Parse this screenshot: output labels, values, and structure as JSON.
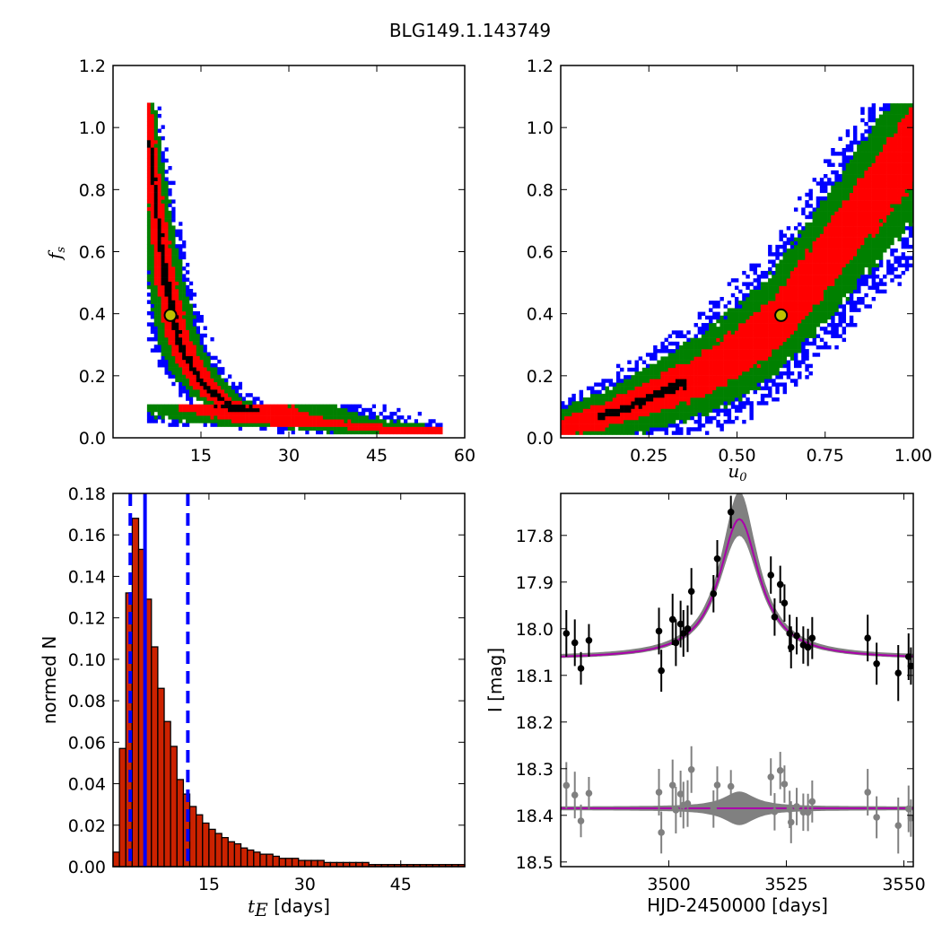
{
  "figure": {
    "title": "BLG149.1.143749"
  },
  "chart_data": [
    {
      "type": "heatmap",
      "xlabel": "",
      "ylabel": "f",
      "ylabel_sub": "s",
      "xlim": [
        0,
        60
      ],
      "ylim": [
        0.0,
        1.2
      ],
      "xticks": [
        "15",
        "30",
        "45",
        "60"
      ],
      "yticks": [
        "0.0",
        "0.2",
        "0.4",
        "0.6",
        "0.8",
        "1.0",
        "1.2"
      ],
      "best_fit": {
        "x": 9.8,
        "y": 0.395
      },
      "levels": [
        "black",
        "red",
        "green",
        "blue"
      ],
      "colors": {
        "black": "#000000",
        "red": "#ff0000",
        "green": "#008000",
        "blue": "#0000ff",
        "marker_fill": "#bfbf00"
      },
      "ridge": [
        [
          5.5,
          1.07
        ],
        [
          6.2,
          0.9
        ],
        [
          7,
          0.75
        ],
        [
          8,
          0.6
        ],
        [
          9,
          0.47
        ],
        [
          10,
          0.38
        ],
        [
          11,
          0.31
        ],
        [
          12,
          0.26
        ],
        [
          14,
          0.2
        ],
        [
          16,
          0.15
        ],
        [
          18,
          0.12
        ],
        [
          21,
          0.09
        ],
        [
          25,
          0.065
        ],
        [
          30,
          0.045
        ],
        [
          40,
          0.03
        ],
        [
          55,
          0.02
        ]
      ]
    },
    {
      "type": "heatmap",
      "xlabel": "u",
      "xlabel_sub": "0",
      "ylabel": "",
      "xlim": [
        0.0,
        1.0
      ],
      "ylim": [
        0.0,
        1.2
      ],
      "xticks": [
        "0.25",
        "0.50",
        "0.75",
        "1.00"
      ],
      "yticks": [
        "0.0",
        "0.2",
        "0.4",
        "0.6",
        "0.8",
        "1.0",
        "1.2"
      ],
      "best_fit": {
        "x": 0.625,
        "y": 0.395
      },
      "colors": {
        "black": "#000000",
        "red": "#ff0000",
        "green": "#008000",
        "blue": "#0000ff",
        "marker_fill": "#bfbf00"
      },
      "ridge": [
        [
          0.0,
          0.03
        ],
        [
          0.1,
          0.06
        ],
        [
          0.2,
          0.1
        ],
        [
          0.3,
          0.15
        ],
        [
          0.4,
          0.2
        ],
        [
          0.5,
          0.27
        ],
        [
          0.6,
          0.36
        ],
        [
          0.7,
          0.5
        ],
        [
          0.8,
          0.65
        ],
        [
          0.9,
          0.8
        ],
        [
          1.0,
          0.95
        ]
      ]
    },
    {
      "type": "bar",
      "xlabel_math": "t",
      "xlabel_sub": "E",
      "xlabel_unit": " [days]",
      "ylabel": "normed N",
      "xlim": [
        0,
        55
      ],
      "ylim": [
        0.0,
        0.18
      ],
      "xticks": [
        "15",
        "30",
        "45"
      ],
      "yticks": [
        "0.00",
        "0.02",
        "0.04",
        "0.06",
        "0.08",
        "0.10",
        "0.12",
        "0.14",
        "0.16",
        "0.18"
      ],
      "bin_start": 0,
      "bin_width": 1.0,
      "values": [
        0.007,
        0.057,
        0.132,
        0.168,
        0.153,
        0.129,
        0.106,
        0.086,
        0.07,
        0.058,
        0.042,
        0.035,
        0.029,
        0.025,
        0.021,
        0.018,
        0.016,
        0.014,
        0.012,
        0.011,
        0.009,
        0.008,
        0.007,
        0.006,
        0.006,
        0.005,
        0.004,
        0.004,
        0.004,
        0.003,
        0.003,
        0.003,
        0.003,
        0.002,
        0.002,
        0.002,
        0.002,
        0.002,
        0.002,
        0.002,
        0.001,
        0.001,
        0.001,
        0.001,
        0.001,
        0.001,
        0.001,
        0.001,
        0.001,
        0.001,
        0.001,
        0.001,
        0.001,
        0.001,
        0.001
      ],
      "vlines": [
        {
          "x": 2.7,
          "style": "dashed"
        },
        {
          "x": 5.0,
          "style": "solid"
        },
        {
          "x": 11.7,
          "style": "dashed"
        }
      ],
      "colors": {
        "bar": "#cc2200",
        "edge": "#000000",
        "vline": "#0000ff"
      }
    },
    {
      "type": "scatter",
      "xlabel": "HJD-2450000 [days]",
      "ylabel": "I [mag]",
      "xlim": [
        3477,
        3552
      ],
      "ylim": [
        18.51,
        17.71
      ],
      "y_inverted": true,
      "xticks": [
        "3500",
        "3525",
        "3550"
      ],
      "yticks": [
        "17.8",
        "17.9",
        "18.0",
        "18.1",
        "18.2",
        "18.3",
        "18.4",
        "18.5"
      ],
      "model": {
        "t0": 3515.0,
        "base": 18.065,
        "peak": 17.765,
        "tau": 5.2
      },
      "residual_offset": 18.385,
      "data_points": [
        [
          3478.2,
          18.01,
          0.05
        ],
        [
          3480.0,
          18.03,
          0.05
        ],
        [
          3481.3,
          18.085,
          0.035
        ],
        [
          3483.0,
          18.025,
          0.035
        ],
        [
          3497.9,
          18.005,
          0.05
        ],
        [
          3498.4,
          18.09,
          0.045
        ],
        [
          3500.8,
          17.98,
          0.055
        ],
        [
          3501.5,
          18.03,
          0.05
        ],
        [
          3502.5,
          17.99,
          0.05
        ],
        [
          3503.1,
          18.01,
          0.05
        ],
        [
          3504.0,
          18.0,
          0.05
        ],
        [
          3504.8,
          17.92,
          0.05
        ],
        [
          3509.5,
          17.925,
          0.04
        ],
        [
          3510.3,
          17.85,
          0.04
        ],
        [
          3513.2,
          17.75,
          0.035
        ],
        [
          3521.7,
          17.885,
          0.04
        ],
        [
          3522.5,
          17.975,
          0.04
        ],
        [
          3523.7,
          17.905,
          0.04
        ],
        [
          3524.6,
          17.945,
          0.04
        ],
        [
          3525.7,
          18.01,
          0.04
        ],
        [
          3526.0,
          18.04,
          0.045
        ],
        [
          3527.2,
          18.015,
          0.04
        ],
        [
          3528.6,
          18.035,
          0.04
        ],
        [
          3529.6,
          18.04,
          0.04
        ],
        [
          3530.5,
          18.02,
          0.045
        ],
        [
          3542.3,
          18.02,
          0.05
        ],
        [
          3544.2,
          18.075,
          0.045
        ],
        [
          3548.8,
          18.095,
          0.06
        ],
        [
          3551.0,
          18.06,
          0.05
        ],
        [
          3551.5,
          18.08,
          0.04
        ]
      ],
      "colors": {
        "model": "#aa00aa",
        "band": "#808080",
        "points": "#000000",
        "residual_points": "#808080"
      }
    }
  ]
}
